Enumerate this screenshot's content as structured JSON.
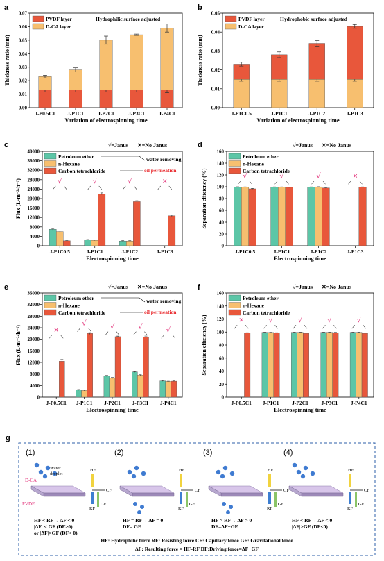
{
  "colors": {
    "pvdf": "#e8573b",
    "dca": "#f7bf6f",
    "petroleum": "#5cc6a7",
    "hexane": "#f7bf6f",
    "ccl4": "#e8573b",
    "red_text": "#e8262a",
    "pink": "#e2337a",
    "panel_g_border": "#2e5fa8"
  },
  "symbols": {
    "janus": "√",
    "nojanus": "✕"
  },
  "chart_data": [
    {
      "panel": "a",
      "type": "bar",
      "stacked": true,
      "annotation": "Hydrophilic surface adjusted",
      "categories": [
        "J-P0.5C1",
        "J-P1C1",
        "J-P2C1",
        "J-P3C1",
        "J-P4C1"
      ],
      "series": [
        {
          "name": "PVDF layer",
          "values": [
            0.013,
            0.013,
            0.013,
            0.013,
            0.013
          ],
          "errors": [
            0.0015,
            0.0015,
            0.0015,
            0.0015,
            0.002
          ]
        },
        {
          "name": "D-CA layer",
          "values": [
            0.01,
            0.015,
            0.037,
            0.041,
            0.046
          ],
          "errors": [
            0.001,
            0.0015,
            0.003,
            0.0005,
            0.003
          ]
        }
      ],
      "xlabel": "Variation of electrospinning time",
      "ylabel": "Thickness ratio (mm)",
      "ylim": [
        0,
        0.07
      ],
      "yticks": [
        "0.00",
        "0.01",
        "0.02",
        "0.03",
        "0.04",
        "0.05",
        "0.06",
        "0.07"
      ],
      "legend": "top-left"
    },
    {
      "panel": "b",
      "type": "bar",
      "stacked": true,
      "annotation": "Hydrophobic surface adjusted",
      "categories": [
        "J-P1C0.5",
        "J-P1C1",
        "J-P1C2",
        "J-P1C3"
      ],
      "series": [
        {
          "name": "D-CA layer",
          "values": [
            0.015,
            0.015,
            0.015,
            0.015
          ],
          "errors": [
            0.001,
            0.001,
            0.001,
            0.001
          ]
        },
        {
          "name": "PVDF layer",
          "values": [
            0.008,
            0.013,
            0.019,
            0.028
          ],
          "errors": [
            0.001,
            0.0015,
            0.0015,
            0.001
          ]
        }
      ],
      "xlabel": "Variation of electrospinning time",
      "ylabel": "Thickness ratio (mm)",
      "ylim": [
        0,
        0.05
      ],
      "yticks": [
        "0.00",
        "0.01",
        "0.02",
        "0.03",
        "0.04",
        "0.05"
      ],
      "legend": "top-left"
    },
    {
      "panel": "c",
      "type": "bar",
      "categories": [
        "J-P1C0.5",
        "J-P1C1",
        "J-P1C2",
        "J-P1C3"
      ],
      "janus": [
        true,
        true,
        true,
        false
      ],
      "series": [
        {
          "name": "Petroleum ether",
          "values": [
            7000,
            2500,
            2000,
            0
          ],
          "errors": [
            300,
            150,
            200,
            0
          ]
        },
        {
          "name": "n-Hexane",
          "values": [
            6000,
            2300,
            2000,
            0
          ],
          "errors": [
            250,
            150,
            150,
            0
          ]
        },
        {
          "name": "Carbon tetrachloride",
          "values": [
            2100,
            22000,
            18700,
            12700
          ],
          "errors": [
            100,
            400,
            400,
            300
          ]
        }
      ],
      "notes": [
        "water removing",
        "oil permeation"
      ],
      "legend_marks": [
        "√=Janus",
        "✕=No Janus"
      ],
      "xlabel": "Electrospinning time",
      "ylabel": "Flux (L·m⁻²·h⁻¹)",
      "ylim": [
        0,
        40000
      ],
      "yticks": [
        "0",
        "4000",
        "8000",
        "12000",
        "16000",
        "20000",
        "24000",
        "28000",
        "32000",
        "36000",
        "40000"
      ]
    },
    {
      "panel": "d",
      "type": "bar",
      "categories": [
        "J-P1C0.5",
        "J-P1C1",
        "J-P1C2",
        "J-P1C3"
      ],
      "janus": [
        true,
        true,
        true,
        false
      ],
      "series": [
        {
          "name": "Petroleum ether",
          "values": [
            99.5,
            99.5,
            99.5,
            0
          ],
          "errors": [
            0.5,
            0.3,
            0.3,
            0
          ]
        },
        {
          "name": "n-Hexane",
          "values": [
            99.3,
            99.5,
            99.8,
            0
          ],
          "errors": [
            0.5,
            0.3,
            0.3,
            0
          ]
        },
        {
          "name": "Carbon tetrachloride",
          "values": [
            96.5,
            99,
            98,
            99.5
          ],
          "errors": [
            0.8,
            0.5,
            0.8,
            0.3
          ]
        }
      ],
      "legend_marks": [
        "√=Janus",
        "✕=No Janus"
      ],
      "xlabel": "Electrospinning time",
      "ylabel": "Separation efficiency (%)",
      "ylim": [
        0,
        160
      ],
      "yticks": [
        "0",
        "20",
        "40",
        "60",
        "80",
        "100",
        "120",
        "140",
        "160"
      ]
    },
    {
      "panel": "e",
      "type": "bar",
      "categories": [
        "J-P0.5C1",
        "J-P1C1",
        "J-P2C1",
        "J-P3C1",
        "J-P4C1"
      ],
      "janus": [
        false,
        true,
        true,
        true,
        true
      ],
      "series": [
        {
          "name": "Petroleum ether",
          "values": [
            0,
            2500,
            7300,
            8700,
            5600
          ],
          "errors": [
            0,
            150,
            200,
            150,
            150
          ]
        },
        {
          "name": "n-Hexane",
          "values": [
            0,
            2300,
            6600,
            7600,
            5400
          ],
          "errors": [
            0,
            150,
            200,
            150,
            100
          ]
        },
        {
          "name": "Carbon tetrachloride",
          "values": [
            12400,
            22000,
            20900,
            20800,
            5500
          ],
          "errors": [
            600,
            300,
            200,
            300,
            100
          ]
        }
      ],
      "notes": [
        "water removing",
        "oil permeation"
      ],
      "legend_marks": [
        "√=Janus",
        "✕=No Janus"
      ],
      "xlabel": "Electrospinning time",
      "ylabel": "Flux (L·m⁻²·h⁻¹)",
      "ylim": [
        0,
        36000
      ],
      "yticks": [
        "0",
        "4000",
        "8000",
        "12000",
        "16000",
        "20000",
        "24000",
        "28000",
        "32000",
        "36000"
      ]
    },
    {
      "panel": "f",
      "type": "bar",
      "categories": [
        "J-P0.5C1",
        "J-P1C1",
        "J-P2C1",
        "J-P3C1",
        "J-P4C1"
      ],
      "janus": [
        false,
        true,
        true,
        true,
        true
      ],
      "series": [
        {
          "name": "Petroleum ether",
          "values": [
            0,
            99.5,
            99.5,
            99.5,
            99.5
          ],
          "errors": [
            0,
            0.3,
            0.3,
            0.3,
            0.3
          ]
        },
        {
          "name": "n-Hexane",
          "values": [
            0,
            99.3,
            99.5,
            99.5,
            99.5
          ],
          "errors": [
            0,
            0.3,
            0.3,
            0.3,
            0.3
          ]
        },
        {
          "name": "Carbon tetrachloride",
          "values": [
            98.5,
            98.5,
            98,
            99,
            98
          ],
          "errors": [
            0.5,
            0.5,
            0.5,
            0.5,
            0.5
          ]
        }
      ],
      "legend_marks": [
        "√=Janus",
        "✕=No Janus"
      ],
      "xlabel": "Electrospinning time",
      "ylabel": "Separation efficiency (%)",
      "ylim": [
        0,
        160
      ],
      "yticks": [
        "0",
        "20",
        "40",
        "60",
        "80",
        "100",
        "120",
        "140",
        "160"
      ]
    }
  ],
  "panel_g": {
    "label": "g",
    "cases": [
      {
        "num": "(1)",
        "lines": [
          "HF < RF→ ΔF < 0",
          "|ΔF| < GF  (DF>0)",
          "or |ΔF|>GF  (DF< 0)"
        ]
      },
      {
        "num": "(2)",
        "lines": [
          "HF = RF→ ΔF = 0",
          "DF= GF"
        ]
      },
      {
        "num": "(3)",
        "lines": [
          "HF > RF→ ΔF > 0",
          "DF=ΔF+GF"
        ]
      },
      {
        "num": "(4)",
        "lines": [
          "HF < RF→ ΔF < 0",
          "|ΔF|>GF (DF<0)"
        ]
      }
    ],
    "labels": {
      "water": "Water",
      "droplet": "droplet",
      "dca": "D-CA",
      "pvdf": "PVDF",
      "hf": "HF",
      "rf": "RF",
      "cf": "CF",
      "gf": "GF"
    },
    "legend_line1": "HF: Hydrophilic force      RF: Resisting force      CF: Capillary force      GF: Gravitational force",
    "legend_line2": "ΔF: Resulting force = HF-RF          DF:Driving force=ΔF+GF"
  }
}
